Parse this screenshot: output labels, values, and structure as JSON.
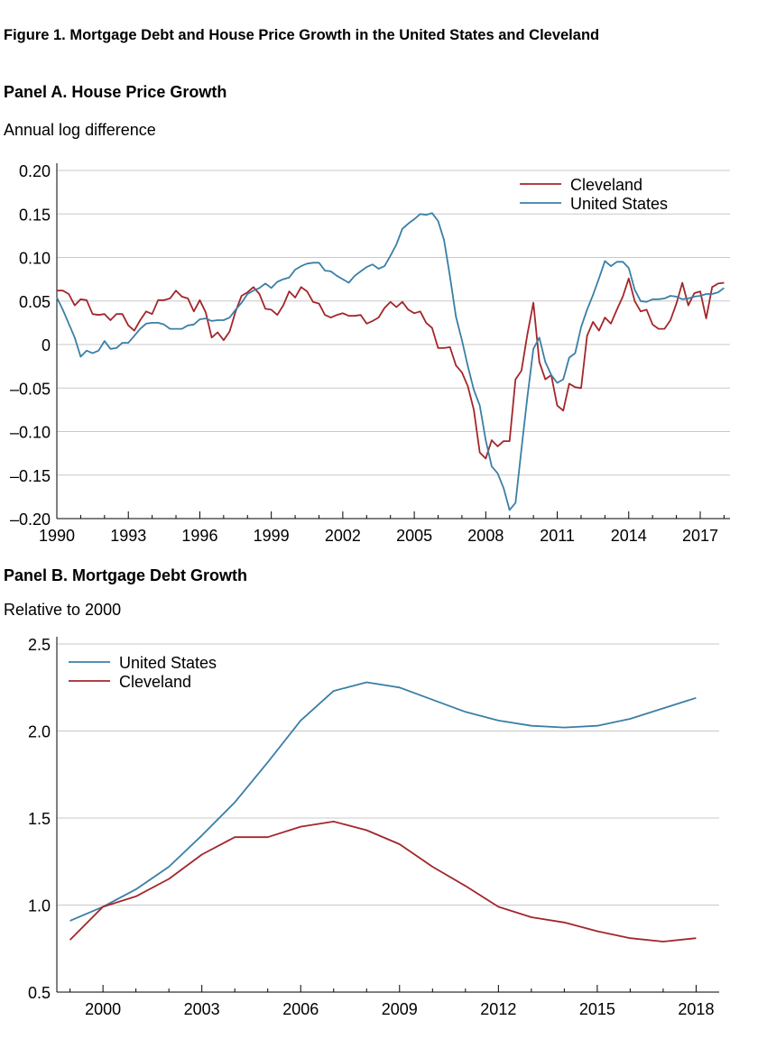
{
  "figure_title": "Figure 1. Mortgage Debt and House Price Growth in the United States and Cleveland",
  "colors": {
    "cleveland": "#a3262b",
    "united_states": "#3a7fa6",
    "grid": "#c8c8c8",
    "axis": "#000000"
  },
  "panel_a": {
    "title": "Panel A. House Price Growth",
    "subtitle": "Annual log difference"
  },
  "panel_b": {
    "title": "Panel B. Mortgage Debt Growth",
    "subtitle": "Relative to 2000"
  },
  "chart_data": [
    {
      "type": "line",
      "title": "Panel A. House Price Growth",
      "ylabel": "Annual log difference",
      "xlim": [
        1990,
        2018.25
      ],
      "ylim": [
        -0.2,
        0.2
      ],
      "x_ticks": [
        1990,
        1993,
        1996,
        1999,
        2002,
        2005,
        2008,
        2011,
        2014,
        2017
      ],
      "x_tick_labels": [
        "1990",
        "1993",
        "1996",
        "1999",
        "2002",
        "2005",
        "2008",
        "2011",
        "2014",
        "2017"
      ],
      "y_ticks": [
        0.2,
        0.15,
        0.1,
        0.05,
        0,
        -0.05,
        -0.1,
        -0.15,
        -0.2
      ],
      "y_tick_labels": [
        "0.20",
        "0.15",
        "0.10",
        "0.05",
        "0",
        "–0.05",
        "–0.10",
        "–0.15",
        "–0.20"
      ],
      "grid": true,
      "legend": "top-right",
      "x_start": 1990,
      "x_step": 0.25,
      "series": [
        {
          "name": "Cleveland",
          "color": "#a3262b",
          "values": [
            0.062,
            0.062,
            0.058,
            0.045,
            0.052,
            0.051,
            0.035,
            0.034,
            0.035,
            0.028,
            0.035,
            0.035,
            0.022,
            0.016,
            0.028,
            0.038,
            0.035,
            0.051,
            0.051,
            0.053,
            0.062,
            0.055,
            0.053,
            0.038,
            0.051,
            0.037,
            0.008,
            0.014,
            0.005,
            0.015,
            0.038,
            0.056,
            0.06,
            0.066,
            0.058,
            0.041,
            0.04,
            0.034,
            0.045,
            0.061,
            0.054,
            0.066,
            0.061,
            0.049,
            0.047,
            0.034,
            0.031,
            0.034,
            0.036,
            0.033,
            0.033,
            0.034,
            0.024,
            0.027,
            0.031,
            0.042,
            0.049,
            0.043,
            0.049,
            0.04,
            0.036,
            0.038,
            0.025,
            0.019,
            -0.004,
            -0.004,
            -0.003,
            -0.024,
            -0.032,
            -0.048,
            -0.075,
            -0.124,
            -0.131,
            -0.11,
            -0.117,
            -0.111,
            -0.111,
            -0.04,
            -0.03,
            0.012,
            0.048,
            -0.02,
            -0.04,
            -0.035,
            -0.07,
            -0.076,
            -0.045,
            -0.049,
            -0.05,
            0.01,
            0.026,
            0.016,
            0.031,
            0.024,
            0.04,
            0.055,
            0.076,
            0.05,
            0.038,
            0.04,
            0.023,
            0.018,
            0.018,
            0.028,
            0.047,
            0.071,
            0.045,
            0.059,
            0.061,
            0.03,
            0.066,
            0.07,
            0.071
          ]
        },
        {
          "name": "United States",
          "color": "#3a7fa6",
          "values": [
            0.054,
            0.04,
            0.024,
            0.008,
            -0.014,
            -0.007,
            -0.01,
            -0.007,
            0.004,
            -0.005,
            -0.004,
            0.002,
            0.002,
            0.01,
            0.018,
            0.024,
            0.025,
            0.025,
            0.023,
            0.018,
            0.018,
            0.018,
            0.022,
            0.023,
            0.029,
            0.03,
            0.027,
            0.028,
            0.028,
            0.031,
            0.04,
            0.048,
            0.058,
            0.062,
            0.065,
            0.07,
            0.065,
            0.072,
            0.075,
            0.077,
            0.086,
            0.09,
            0.093,
            0.094,
            0.094,
            0.085,
            0.084,
            0.079,
            0.075,
            0.071,
            0.079,
            0.084,
            0.089,
            0.092,
            0.087,
            0.09,
            0.102,
            0.115,
            0.133,
            0.139,
            0.144,
            0.15,
            0.149,
            0.151,
            0.142,
            0.12,
            0.078,
            0.032,
            0.005,
            -0.025,
            -0.052,
            -0.07,
            -0.11,
            -0.14,
            -0.148,
            -0.165,
            -0.19,
            -0.182,
            -0.12,
            -0.06,
            -0.005,
            0.008,
            -0.02,
            -0.035,
            -0.044,
            -0.04,
            -0.015,
            -0.01,
            0.02,
            0.04,
            0.057,
            0.076,
            0.096,
            0.09,
            0.095,
            0.095,
            0.088,
            0.063,
            0.05,
            0.049,
            0.052,
            0.052,
            0.053,
            0.056,
            0.055,
            0.052,
            0.053,
            0.055,
            0.056,
            0.058,
            0.058,
            0.06,
            0.065
          ]
        }
      ]
    },
    {
      "type": "line",
      "title": "Panel B. Mortgage Debt Growth",
      "ylabel": "Relative to 2000",
      "xlim": [
        1998.6,
        2018.7
      ],
      "ylim": [
        0.5,
        2.5
      ],
      "x_ticks": [
        2000,
        2003,
        2006,
        2009,
        2012,
        2015,
        2018
      ],
      "x_tick_labels": [
        "2000",
        "2003",
        "2006",
        "2009",
        "2012",
        "2015",
        "2018"
      ],
      "y_ticks": [
        2.5,
        2.0,
        1.5,
        1.0,
        0.5
      ],
      "y_tick_labels": [
        "2.5",
        "2.0",
        "1.5",
        "1.0",
        "0.5"
      ],
      "grid": true,
      "legend": "top-left",
      "x": [
        1999,
        2000,
        2001,
        2002,
        2003,
        2004,
        2005,
        2006,
        2007,
        2008,
        2009,
        2010,
        2011,
        2012,
        2013,
        2014,
        2015,
        2016,
        2017,
        2018
      ],
      "series": [
        {
          "name": "United States",
          "color": "#3a7fa6",
          "values": [
            0.91,
            0.99,
            1.09,
            1.22,
            1.4,
            1.59,
            1.82,
            2.06,
            2.23,
            2.28,
            2.25,
            2.18,
            2.11,
            2.06,
            2.03,
            2.02,
            2.03,
            2.07,
            2.13,
            2.19
          ]
        },
        {
          "name": "Cleveland",
          "color": "#a3262b",
          "values": [
            0.8,
            0.99,
            1.05,
            1.15,
            1.29,
            1.39,
            1.39,
            1.45,
            1.48,
            1.43,
            1.35,
            1.22,
            1.11,
            0.99,
            0.93,
            0.9,
            0.85,
            0.81,
            0.79,
            0.81
          ]
        }
      ]
    }
  ]
}
